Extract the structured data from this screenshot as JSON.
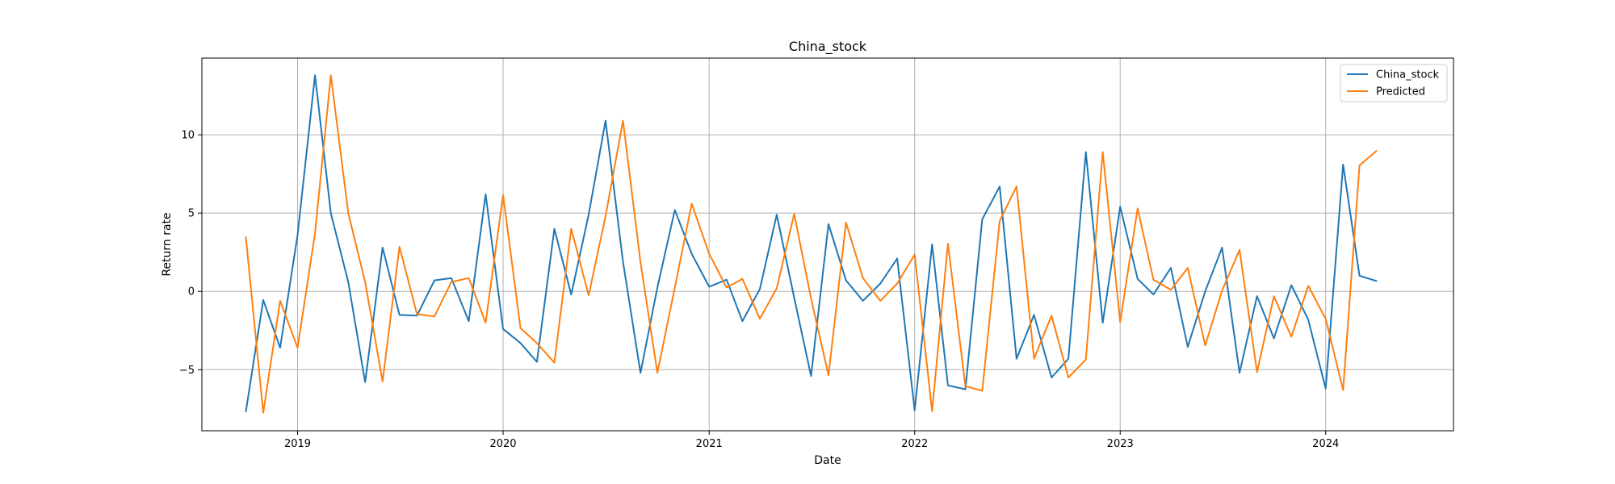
{
  "chart_data": {
    "type": "line",
    "title": "China_stock",
    "xlabel": "Date",
    "ylabel": "Return rate",
    "xlim": [
      "2018-07-15",
      "2024-08-15"
    ],
    "ylim": [
      -8.9,
      14.9
    ],
    "xticks": [
      "2019-01-01",
      "2020-01-01",
      "2021-01-01",
      "2022-01-01",
      "2023-01-01",
      "2024-01-01"
    ],
    "xtick_labels": [
      "2019",
      "2020",
      "2021",
      "2022",
      "2023",
      "2024"
    ],
    "yticks": [
      -5,
      0,
      5,
      10
    ],
    "ytick_labels": [
      "−5",
      "0",
      "5",
      "10"
    ],
    "grid": true,
    "legend_position": "top-right",
    "series": [
      {
        "name": "China_stock",
        "color": "#1f77b4",
        "x": [
          "2018-10-01",
          "2018-11-01",
          "2018-12-01",
          "2019-01-01",
          "2019-02-01",
          "2019-03-01",
          "2019-04-01",
          "2019-05-01",
          "2019-06-01",
          "2019-07-01",
          "2019-08-01",
          "2019-09-01",
          "2019-10-01",
          "2019-11-01",
          "2019-12-01",
          "2020-01-01",
          "2020-02-01",
          "2020-03-01",
          "2020-04-01",
          "2020-05-01",
          "2020-06-01",
          "2020-07-01",
          "2020-08-01",
          "2020-09-01",
          "2020-10-01",
          "2020-11-01",
          "2020-12-01",
          "2021-01-01",
          "2021-02-01",
          "2021-03-01",
          "2021-04-01",
          "2021-05-01",
          "2021-06-01",
          "2021-07-01",
          "2021-08-01",
          "2021-09-01",
          "2021-10-01",
          "2021-11-01",
          "2021-12-01",
          "2022-01-01",
          "2022-02-01",
          "2022-03-01",
          "2022-04-01",
          "2022-05-01",
          "2022-06-01",
          "2022-07-01",
          "2022-08-01",
          "2022-09-01",
          "2022-10-01",
          "2022-11-01",
          "2022-12-01",
          "2023-01-01",
          "2023-02-01",
          "2023-03-01",
          "2023-04-01",
          "2023-05-01",
          "2023-06-01",
          "2023-07-01",
          "2023-08-01",
          "2023-09-01",
          "2023-10-01",
          "2023-11-01",
          "2023-12-01",
          "2024-01-01",
          "2024-02-01",
          "2024-03-01",
          "2024-04-01"
        ],
        "y": [
          -7.7,
          -0.55,
          -3.6,
          3.6,
          13.8,
          5.0,
          0.6,
          -5.8,
          2.8,
          -1.5,
          -1.55,
          0.7,
          0.85,
          -1.9,
          6.2,
          -2.4,
          -3.3,
          -4.5,
          4.0,
          -0.2,
          4.9,
          10.9,
          1.9,
          -5.2,
          0.25,
          5.2,
          2.4,
          0.3,
          0.75,
          -1.9,
          0.15,
          4.9,
          -0.4,
          -5.4,
          4.3,
          0.7,
          -0.6,
          0.5,
          2.1,
          -7.6,
          3.0,
          -6.0,
          -6.25,
          4.6,
          6.7,
          -4.3,
          -1.5,
          -5.5,
          -4.3,
          8.9,
          -2.0,
          5.4,
          0.8,
          -0.2,
          1.5,
          -3.55,
          0.0,
          2.8,
          -5.2,
          -0.3,
          -3.0,
          0.4,
          -1.8,
          -6.2,
          8.1,
          1.0,
          0.65
        ]
      },
      {
        "name": "Predicted",
        "color": "#ff7f0e",
        "x": [
          "2018-10-01",
          "2018-11-01",
          "2018-12-01",
          "2019-01-01",
          "2019-02-01",
          "2019-03-01",
          "2019-04-01",
          "2019-05-01",
          "2019-06-01",
          "2019-07-01",
          "2019-08-01",
          "2019-09-01",
          "2019-10-01",
          "2019-11-01",
          "2019-12-01",
          "2020-01-01",
          "2020-02-01",
          "2020-03-01",
          "2020-04-01",
          "2020-05-01",
          "2020-06-01",
          "2020-07-01",
          "2020-08-01",
          "2020-09-01",
          "2020-10-01",
          "2020-11-01",
          "2020-12-01",
          "2021-01-01",
          "2021-02-01",
          "2021-03-01",
          "2021-04-01",
          "2021-05-01",
          "2021-06-01",
          "2021-07-01",
          "2021-08-01",
          "2021-09-01",
          "2021-10-01",
          "2021-11-01",
          "2021-12-01",
          "2022-01-01",
          "2022-02-01",
          "2022-03-01",
          "2022-04-01",
          "2022-05-01",
          "2022-06-01",
          "2022-07-01",
          "2022-08-01",
          "2022-09-01",
          "2022-10-01",
          "2022-11-01",
          "2022-12-01",
          "2023-01-01",
          "2023-02-01",
          "2023-03-01",
          "2023-04-01",
          "2023-05-01",
          "2023-06-01",
          "2023-07-01",
          "2023-08-01",
          "2023-09-01",
          "2023-10-01",
          "2023-11-01",
          "2023-12-01",
          "2024-01-01",
          "2024-02-01",
          "2024-03-01",
          "2024-04-01"
        ],
        "y": [
          3.5,
          -7.75,
          -0.6,
          -3.6,
          3.7,
          13.8,
          5.0,
          0.6,
          -5.75,
          2.85,
          -1.45,
          -1.6,
          0.6,
          0.85,
          -2.0,
          6.15,
          -2.35,
          -3.3,
          -4.55,
          4.0,
          -0.25,
          4.8,
          10.9,
          1.85,
          -5.2,
          0.25,
          5.6,
          2.4,
          0.25,
          0.8,
          -1.75,
          0.2,
          4.95,
          -0.45,
          -5.35,
          4.4,
          0.85,
          -0.6,
          0.5,
          2.35,
          -7.65,
          3.05,
          -6.05,
          -6.35,
          4.5,
          6.7,
          -4.3,
          -1.55,
          -5.5,
          -4.35,
          8.9,
          -1.95,
          5.3,
          0.75,
          0.1,
          1.5,
          -3.45,
          0.05,
          2.65,
          -5.15,
          -0.3,
          -2.9,
          0.35,
          -1.75,
          -6.3,
          8.05,
          9.0
        ]
      }
    ]
  }
}
